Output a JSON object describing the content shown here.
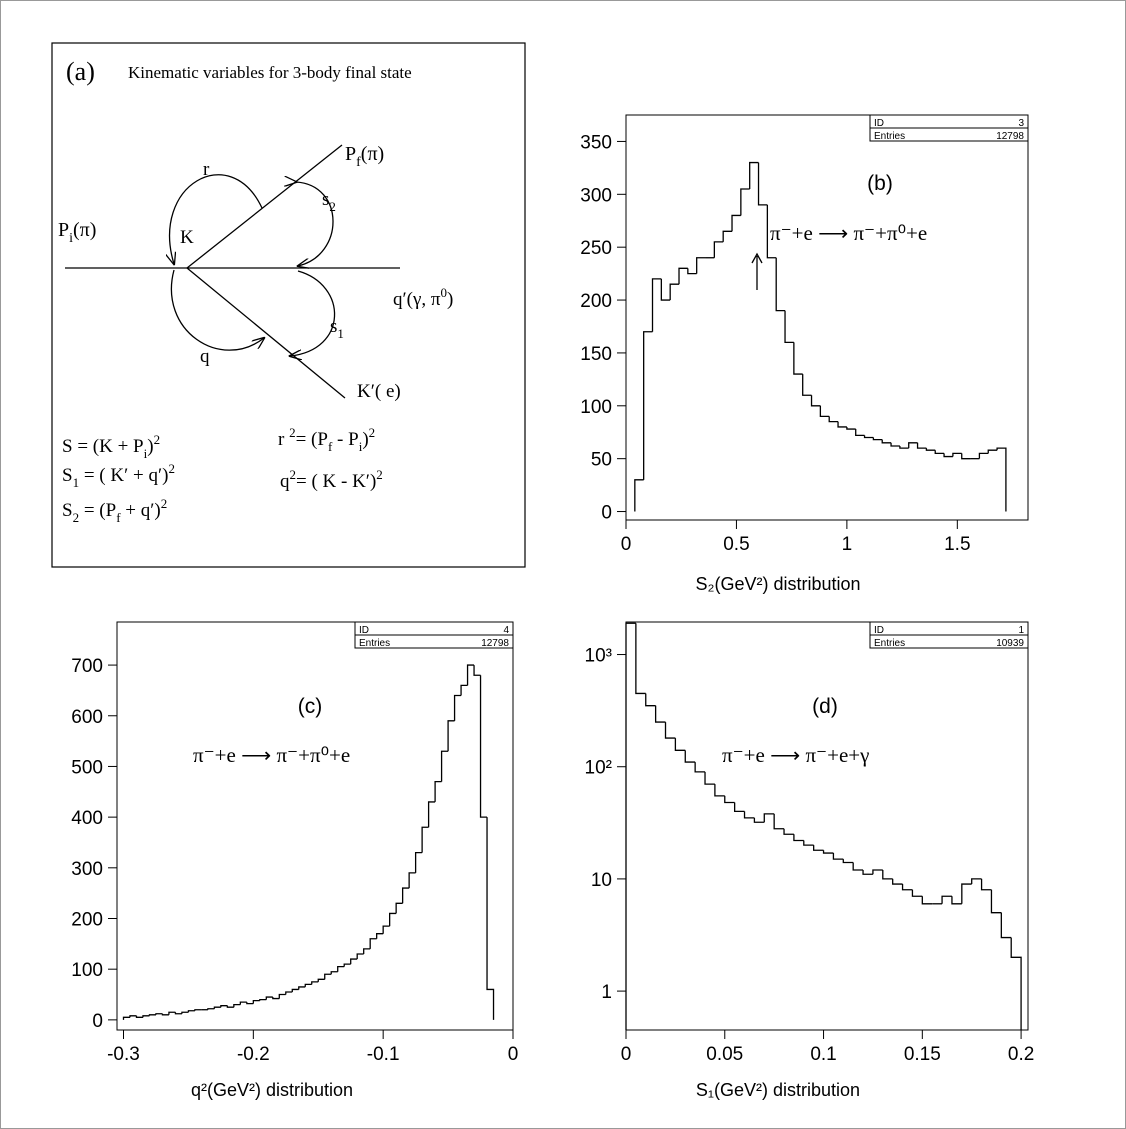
{
  "diagram": {
    "labels": [
      {
        "parts": [
          {
            "text": "(a)"
          }
        ]
      },
      {
        "parts": [
          {
            "text": "Kinematic variables for 3-body  final state"
          }
        ]
      },
      {
        "parts": [
          {
            "text": "P"
          },
          {
            "text": "f",
            "pos": "sub"
          },
          {
            "text": "(π)"
          }
        ]
      },
      {
        "parts": [
          {
            "text": "r"
          }
        ]
      },
      {
        "parts": [
          {
            "text": "s"
          },
          {
            "text": "2",
            "pos": "sub"
          }
        ]
      },
      {
        "parts": [
          {
            "text": "P"
          },
          {
            "text": "i",
            "pos": "sub"
          },
          {
            "text": "(π)"
          }
        ]
      },
      {
        "parts": [
          {
            "text": "K"
          }
        ]
      },
      {
        "parts": [
          {
            "text": "q′(γ, π"
          },
          {
            "text": "0",
            "pos": "sup"
          },
          {
            "text": ")"
          }
        ]
      },
      {
        "parts": [
          {
            "text": "s"
          },
          {
            "text": "1",
            "pos": "sub"
          }
        ]
      },
      {
        "parts": [
          {
            "text": "q"
          }
        ]
      },
      {
        "parts": [
          {
            "text": "K′( e)"
          }
        ]
      },
      {
        "parts": [
          {
            "text": "S  = (K + P"
          },
          {
            "text": "i",
            "pos": "sub"
          },
          {
            "text": ")"
          },
          {
            "text": "2",
            "pos": "sup"
          }
        ]
      },
      {
        "parts": [
          {
            "text": "r "
          },
          {
            "text": "2",
            "pos": "sup"
          },
          {
            "text": "= (P"
          },
          {
            "text": "f",
            "pos": "sub"
          },
          {
            "text": " -  P"
          },
          {
            "text": "i",
            "pos": "sub"
          },
          {
            "text": ")"
          },
          {
            "text": "2",
            "pos": "sup"
          }
        ]
      },
      {
        "parts": [
          {
            "text": "S"
          },
          {
            "text": "1",
            "pos": "sub"
          },
          {
            "text": " = ( K′ + q′)"
          },
          {
            "text": "2",
            "pos": "sup"
          }
        ]
      },
      {
        "parts": [
          {
            "text": "q"
          },
          {
            "text": "2",
            "pos": "sup"
          },
          {
            "text": "= ( K -  K′)"
          },
          {
            "text": "2",
            "pos": "sup"
          }
        ]
      },
      {
        "parts": [
          {
            "text": "S"
          },
          {
            "text": "2",
            "pos": "sub"
          },
          {
            "text": " = (P"
          },
          {
            "text": "f",
            "pos": "sub"
          },
          {
            "text": " + q′)"
          },
          {
            "text": "2",
            "pos": "sup"
          }
        ]
      }
    ]
  },
  "chart_data": [
    {
      "type": "histogram",
      "panel": "(b)",
      "annotation": "π⁻+e ⟶ π⁻+π⁰+e",
      "x_label": "S₂(GeV²) distribution",
      "stats": [
        {
          "label": "ID",
          "value": 3
        },
        {
          "label": "Entries",
          "value": 12798
        }
      ],
      "color": "#000000",
      "log_y": false,
      "bins": [
        0.04,
        0.08,
        0.12,
        0.16,
        0.2,
        0.24,
        0.28,
        0.32,
        0.36,
        0.4,
        0.44,
        0.48,
        0.52,
        0.56,
        0.6,
        0.64,
        0.68,
        0.72,
        0.76,
        0.8,
        0.84,
        0.88,
        0.92,
        0.96,
        1,
        1.04,
        1.08,
        1.12,
        1.16,
        1.2,
        1.24,
        1.28,
        1.32,
        1.36,
        1.4,
        1.44,
        1.48,
        1.52,
        1.56,
        1.6,
        1.64,
        1.68,
        1.72
      ],
      "values": [
        30,
        170,
        220,
        200,
        215,
        230,
        225,
        240,
        240,
        255,
        265,
        280,
        305,
        330,
        290,
        240,
        190,
        160,
        130,
        110,
        100,
        90,
        85,
        80,
        78,
        72,
        70,
        68,
        65,
        62,
        60,
        65,
        60,
        58,
        55,
        52,
        55,
        50,
        50,
        55,
        58,
        60
      ],
      "xlim": [
        0,
        1.82
      ],
      "xticks": [
        0,
        0.5,
        1,
        1.5
      ],
      "ylim": [
        -8,
        375
      ],
      "yticks": [
        0,
        50,
        100,
        150,
        200,
        250,
        300,
        350
      ]
    },
    {
      "type": "histogram",
      "panel": "(c)",
      "annotation": "π⁻+e ⟶ π⁻+π⁰+e",
      "x_label": "q²(GeV²) distribution",
      "stats": [
        {
          "label": "ID",
          "value": 4
        },
        {
          "label": "Entries",
          "value": 12798
        }
      ],
      "color": "#000000",
      "log_y": false,
      "bins": [
        -0.3,
        -0.295,
        -0.29,
        -0.285,
        -0.28,
        -0.275,
        -0.27,
        -0.265,
        -0.26,
        -0.255,
        -0.25,
        -0.245,
        -0.24,
        -0.235,
        -0.23,
        -0.225,
        -0.22,
        -0.215,
        -0.21,
        -0.205,
        -0.2,
        -0.195,
        -0.19,
        -0.185,
        -0.18,
        -0.175,
        -0.17,
        -0.165,
        -0.16,
        -0.155,
        -0.15,
        -0.145,
        -0.14,
        -0.135,
        -0.13,
        -0.125,
        -0.12,
        -0.115,
        -0.11,
        -0.105,
        -0.1,
        -0.095,
        -0.09,
        -0.085,
        -0.08,
        -0.075,
        -0.07,
        -0.065,
        -0.06,
        -0.055,
        -0.05,
        -0.045,
        -0.04,
        -0.035,
        -0.03,
        -0.025,
        -0.02,
        -0.015
      ],
      "values": [
        5,
        8,
        5,
        8,
        10,
        12,
        10,
        15,
        12,
        15,
        18,
        20,
        20,
        22,
        25,
        28,
        25,
        30,
        35,
        32,
        38,
        40,
        45,
        42,
        50,
        55,
        60,
        65,
        70,
        75,
        80,
        90,
        95,
        105,
        110,
        120,
        130,
        140,
        160,
        170,
        185,
        210,
        230,
        260,
        290,
        330,
        380,
        430,
        470,
        530,
        590,
        640,
        660,
        700,
        680,
        400,
        60
      ],
      "xlim": [
        -0.305,
        0
      ],
      "xticks": [
        -0.3,
        -0.2,
        -0.1,
        0
      ],
      "ylim": [
        -20,
        785
      ],
      "yticks": [
        0,
        100,
        200,
        300,
        400,
        500,
        600,
        700
      ]
    },
    {
      "type": "histogram",
      "panel": "(d)",
      "annotation": "π⁻+e ⟶ π⁻+e+γ",
      "x_label": "S₁(GeV²) distribution",
      "stats": [
        {
          "label": "ID",
          "value": 1
        },
        {
          "label": "Entries",
          "value": 10939
        }
      ],
      "color": "#000000",
      "log_y": true,
      "bins": [
        0,
        0.005,
        0.01,
        0.015,
        0.02,
        0.025,
        0.03,
        0.035,
        0.04,
        0.045,
        0.05,
        0.055,
        0.06,
        0.065,
        0.07,
        0.075,
        0.08,
        0.085,
        0.09,
        0.095,
        0.1,
        0.105,
        0.11,
        0.115,
        0.12,
        0.125,
        0.13,
        0.135,
        0.14,
        0.145,
        0.15,
        0.155,
        0.16,
        0.165,
        0.17,
        0.175,
        0.18,
        0.185,
        0.19,
        0.195,
        0.2
      ],
      "values": [
        1900,
        450,
        350,
        250,
        180,
        140,
        110,
        90,
        70,
        55,
        48,
        40,
        35,
        32,
        38,
        28,
        25,
        22,
        20,
        18,
        17,
        15,
        14,
        12,
        11,
        12,
        10,
        9,
        8,
        7,
        6,
        6,
        7,
        6,
        9,
        10,
        8,
        5,
        3,
        2
      ],
      "xlim": [
        0,
        0.2035
      ],
      "xticks": [
        0,
        0.05,
        0.1,
        0.15,
        0.2
      ],
      "ylim": [
        0.45,
        1950
      ],
      "yticks": [
        1,
        10,
        {
          "value": 100,
          "label": "10²"
        },
        {
          "value": 1000,
          "label": "10³"
        }
      ]
    }
  ]
}
